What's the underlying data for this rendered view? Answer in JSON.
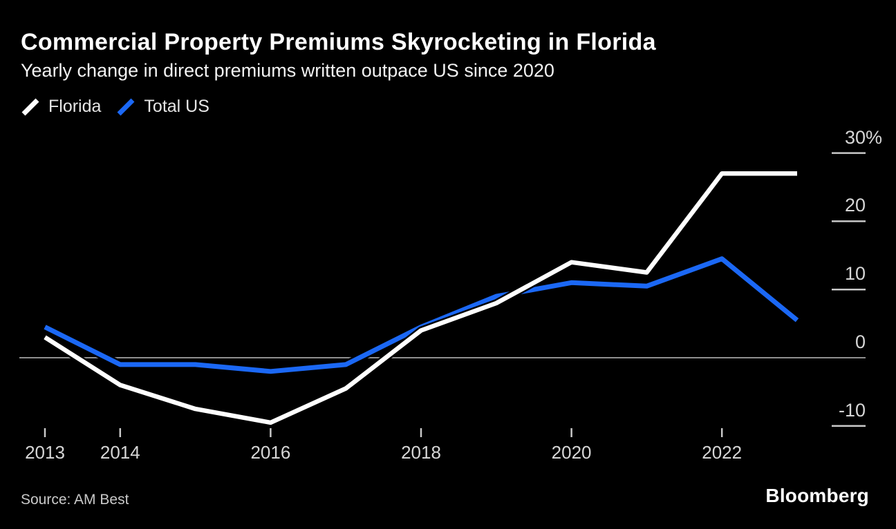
{
  "footer": {
    "source": "Source: AM Best",
    "brand": "Bloomberg"
  },
  "colors": {
    "background": "#000000",
    "florida_line": "#ffffff",
    "total_us_line": "#1b68f5",
    "zero_line": "#8f8f8f",
    "tick": "#c9c9c9",
    "axis_label": "#d6d6d6"
  },
  "chart_data": {
    "type": "line",
    "title": "Commercial Property Premiums Skyrocketing in Florida",
    "subtitle": "Yearly change in direct premiums written outpace US since 2020",
    "x": [
      2013,
      2014,
      2015,
      2016,
      2017,
      2018,
      2019,
      2020,
      2021,
      2022,
      2023
    ],
    "series": [
      {
        "name": "Florida",
        "color": "#ffffff",
        "values": [
          3,
          -4,
          -7.5,
          -9.5,
          -4.5,
          4,
          8,
          14,
          12.5,
          27,
          27
        ]
      },
      {
        "name": "Total US",
        "color": "#1b68f5",
        "values": [
          4.5,
          -1,
          -1,
          -2,
          -1,
          4.5,
          9,
          11,
          10.5,
          14.5,
          5.5
        ]
      }
    ],
    "xlabel": "",
    "ylabel": "Yearly change in direct premiums written (%)",
    "ylim": [
      -13,
      32
    ],
    "xlim": [
      2012.7,
      2023.9
    ],
    "yticks": [
      {
        "value": 30,
        "label": "30",
        "suffix": "%"
      },
      {
        "value": 20,
        "label": "20",
        "suffix": ""
      },
      {
        "value": 10,
        "label": "10",
        "suffix": ""
      },
      {
        "value": 0,
        "label": "0",
        "suffix": ""
      },
      {
        "value": -10,
        "label": "-10",
        "suffix": ""
      }
    ],
    "xticks": [
      {
        "value": 2013,
        "label": "2013"
      },
      {
        "value": 2014,
        "label": "2014"
      },
      {
        "value": 2016,
        "label": "2016"
      },
      {
        "value": 2018,
        "label": "2018"
      },
      {
        "value": 2020,
        "label": "2020"
      },
      {
        "value": 2022,
        "label": "2022"
      }
    ],
    "grid": false,
    "zero_line": true,
    "legend_position": "top-left",
    "y_axis_side": "right"
  }
}
